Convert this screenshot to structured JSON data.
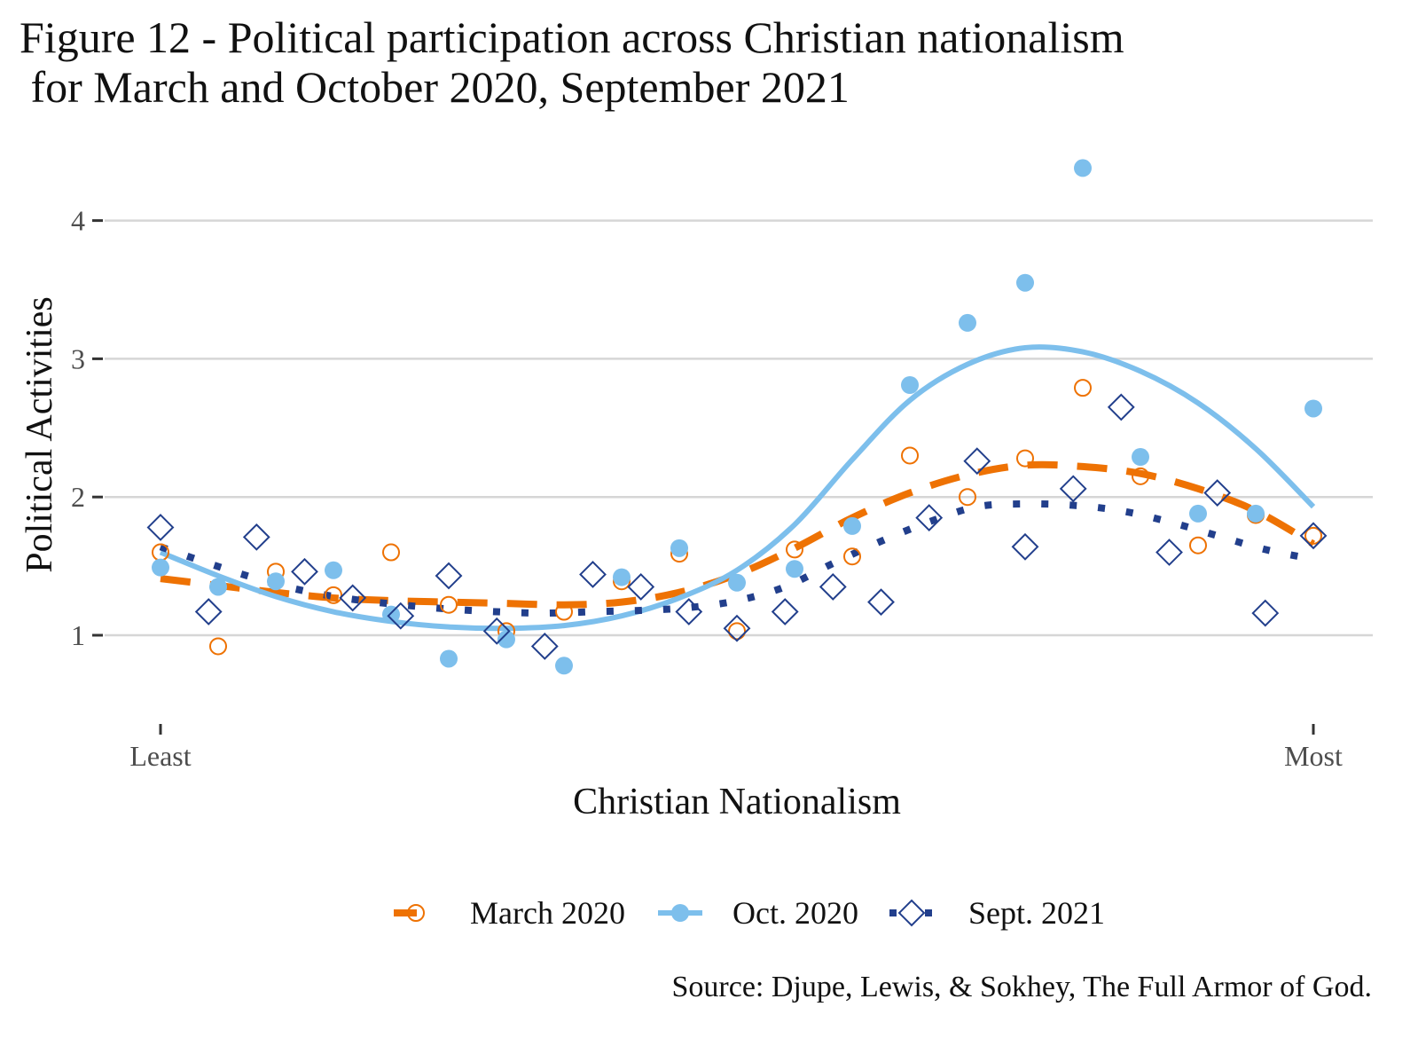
{
  "chart_data": {
    "type": "scatter",
    "title": "Figure 12 - Political participation across Christian nationalism\n for March and October 2020, September 2021",
    "xlabel": "Christian Nationalism",
    "ylabel": "Political Activities",
    "xlim": [
      0,
      1
    ],
    "ylim": [
      0.4,
      4.5
    ],
    "x_ticks": [
      {
        "value": 0,
        "label": "Least"
      },
      {
        "value": 1,
        "label": "Most"
      }
    ],
    "y_ticks": [
      {
        "value": 1,
        "label": "1"
      },
      {
        "value": 2,
        "label": "2"
      },
      {
        "value": 3,
        "label": "3"
      },
      {
        "value": 4,
        "label": "4"
      }
    ],
    "grid": "horizontal-major",
    "legend_position": "bottom",
    "series": [
      {
        "name": "March 2020",
        "color": "#EE7203",
        "marker": "open-circle",
        "line": "dashed",
        "x": [
          0,
          0.05,
          0.1,
          0.15,
          0.2,
          0.25,
          0.3,
          0.35,
          0.4,
          0.45,
          0.5,
          0.55,
          0.6,
          0.65,
          0.7,
          0.75,
          0.8,
          0.85,
          0.9,
          0.95,
          1.0
        ],
        "values": [
          1.6,
          0.92,
          1.46,
          1.29,
          1.6,
          1.22,
          1.03,
          1.17,
          1.39,
          1.59,
          1.03,
          1.62,
          1.57,
          2.3,
          2.0,
          2.28,
          2.79,
          2.15,
          1.65,
          1.87,
          1.72
        ],
        "smooth": [
          1.41,
          1.36,
          1.31,
          1.27,
          1.25,
          1.24,
          1.23,
          1.22,
          1.24,
          1.31,
          1.44,
          1.63,
          1.85,
          2.03,
          2.16,
          2.23,
          2.22,
          2.17,
          2.06,
          1.9,
          1.66
        ]
      },
      {
        "name": "Oct. 2020",
        "color": "#7DBFEC",
        "marker": "filled-circle",
        "line": "solid",
        "x": [
          0,
          0.05,
          0.1,
          0.15,
          0.2,
          0.25,
          0.3,
          0.35,
          0.4,
          0.45,
          0.5,
          0.55,
          0.6,
          0.65,
          0.7,
          0.75,
          0.8,
          0.85,
          0.9,
          0.95,
          1.0
        ],
        "values": [
          1.49,
          1.35,
          1.39,
          1.47,
          1.15,
          0.83,
          0.97,
          0.78,
          1.42,
          1.63,
          1.38,
          1.48,
          1.79,
          2.81,
          3.26,
          3.55,
          4.38,
          2.29,
          1.88,
          1.88,
          2.64
        ],
        "smooth": [
          1.6,
          1.43,
          1.28,
          1.17,
          1.1,
          1.06,
          1.05,
          1.07,
          1.14,
          1.27,
          1.47,
          1.8,
          2.27,
          2.7,
          2.96,
          3.08,
          3.05,
          2.91,
          2.68,
          2.35,
          1.93
        ]
      },
      {
        "name": "Sept. 2021",
        "color": "#223F8C",
        "marker": "open-diamond",
        "line": "dotted",
        "x": [
          0,
          0.0417,
          0.0833,
          0.125,
          0.1667,
          0.2083,
          0.25,
          0.2917,
          0.3333,
          0.375,
          0.4167,
          0.4583,
          0.5,
          0.5417,
          0.5833,
          0.625,
          0.6667,
          0.7083,
          0.75,
          0.7917,
          0.8333,
          0.875,
          0.9167,
          0.9583,
          1.0
        ],
        "values": [
          1.78,
          1.17,
          1.71,
          1.46,
          1.27,
          1.14,
          1.43,
          1.03,
          0.92,
          1.44,
          1.35,
          1.17,
          1.05,
          1.17,
          1.35,
          1.24,
          1.85,
          2.26,
          1.64,
          2.06,
          2.65,
          1.6,
          2.03,
          1.16,
          1.72
        ],
        "smooth": [
          1.64,
          1.52,
          1.41,
          1.32,
          1.26,
          1.22,
          1.19,
          1.17,
          1.16,
          1.17,
          1.18,
          1.2,
          1.25,
          1.35,
          1.52,
          1.68,
          1.82,
          1.93,
          1.95,
          1.94,
          1.9,
          1.82,
          1.72,
          1.62,
          1.55
        ]
      }
    ]
  },
  "source": "Source: Djupe, Lewis, & Sokhey, The Full Armor of God."
}
